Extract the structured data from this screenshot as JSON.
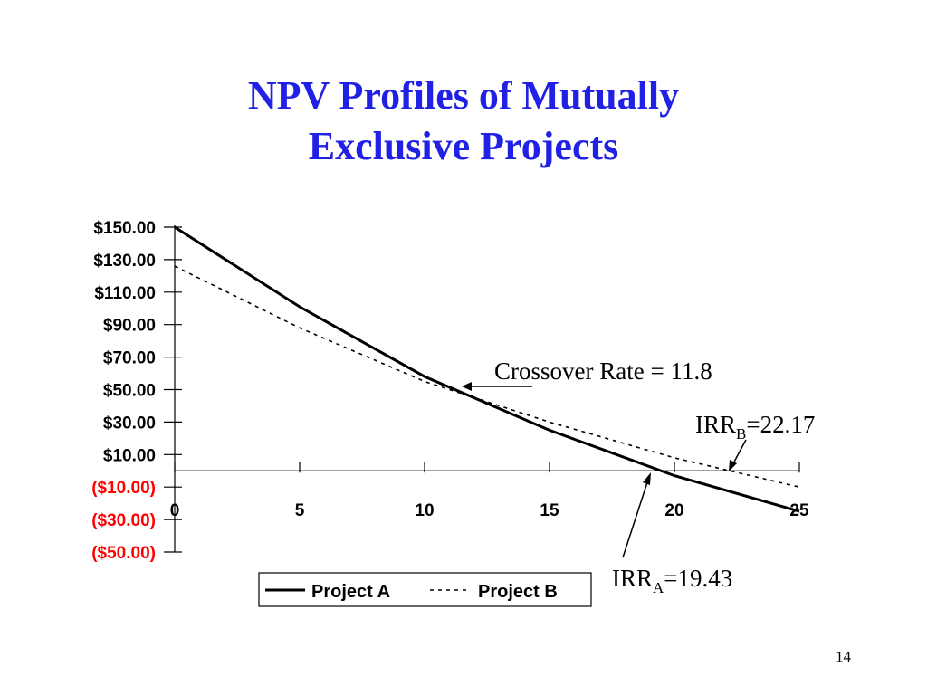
{
  "slide": {
    "title_line1": "NPV Profiles of Mutually",
    "title_line2": "Exclusive Projects",
    "page_number": "14"
  },
  "colors": {
    "title": "#2121e6",
    "negative_label": "#ff0000",
    "positive_label": "#000000",
    "line": "#000000"
  },
  "chart_data": {
    "type": "line",
    "title": "",
    "xlabel": "",
    "ylabel": "",
    "x": [
      0,
      5,
      10,
      15,
      20,
      25
    ],
    "xlim": [
      0,
      25
    ],
    "ylim": [
      -50,
      150
    ],
    "x_tick_labels": [
      "0",
      "5",
      "10",
      "15",
      "20",
      "25"
    ],
    "y_ticks": [
      150,
      130,
      110,
      90,
      70,
      50,
      30,
      10,
      -10,
      -30,
      -50
    ],
    "y_tick_labels": [
      "$150.00",
      "$130.00",
      "$110.00",
      "$90.00",
      "$70.00",
      "$50.00",
      "$30.00",
      "$10.00",
      "($10.00)",
      "($30.00)",
      "($50.00)"
    ],
    "grid": false,
    "legend_position": "bottom",
    "series": [
      {
        "name": "Project A",
        "style": "solid",
        "values": [
          150,
          101,
          58,
          25,
          -3,
          -25
        ]
      },
      {
        "name": "Project B",
        "style": "dotted",
        "values": [
          126,
          88,
          55,
          30,
          8,
          -10
        ]
      }
    ],
    "annotations": [
      {
        "text": "Crossover Rate = 11.8",
        "x": 11.8,
        "y": 51
      },
      {
        "text_main": "IRR",
        "text_sub": "B",
        "text_tail": "=22.17",
        "x": 22.17,
        "y": 0
      },
      {
        "text_main": "IRR",
        "text_sub": "A",
        "text_tail": "=19.43",
        "x": 19.43,
        "y": 0
      }
    ]
  }
}
